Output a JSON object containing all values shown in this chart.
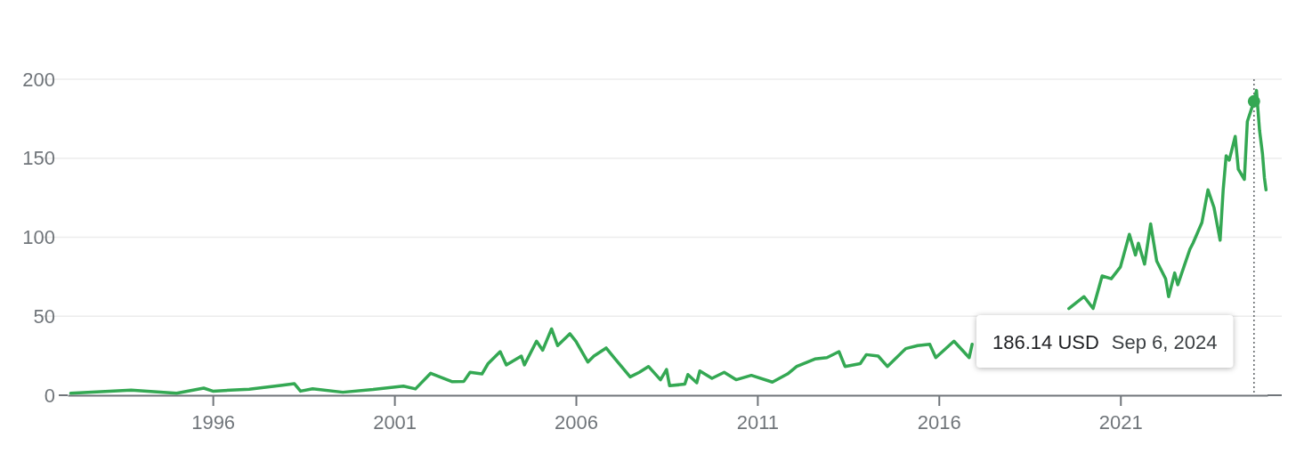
{
  "chart_data": {
    "type": "line",
    "x": [
      "1992-02",
      "1993-10",
      "1995-01",
      "1995-10",
      "1996-01",
      "1997-01",
      "1997-12",
      "1998-04",
      "1998-06",
      "1998-10",
      "1999-08",
      "2000-06",
      "2001-04",
      "2001-08",
      "2002-01",
      "2002-08",
      "2002-12",
      "2003-02",
      "2003-06",
      "2003-08",
      "2003-12",
      "2004-02",
      "2004-07",
      "2004-08",
      "2004-12",
      "2005-02",
      "2005-05",
      "2005-07",
      "2005-11",
      "2006-01",
      "2006-05",
      "2006-07",
      "2006-11",
      "2007-02",
      "2007-07",
      "2007-10",
      "2008-01",
      "2008-05",
      "2008-07",
      "2008-08",
      "2009-01",
      "2009-02",
      "2009-05",
      "2009-06",
      "2009-10",
      "2010-02",
      "2010-06",
      "2010-11",
      "2011-06",
      "2011-11",
      "2012-02",
      "2012-08",
      "2012-12",
      "2013-04",
      "2013-06",
      "2013-11",
      "2014-01",
      "2014-05",
      "2014-08",
      "2015-02",
      "2015-06",
      "2015-10",
      "2015-12",
      "2016-06",
      "2016-11",
      "2016-12",
      "2017-04",
      "2018-06",
      "2019-06",
      "2019-08",
      "2020-01",
      "2020-04",
      "2020-07",
      "2020-10",
      "2021-01",
      "2021-04",
      "2021-06",
      "2021-07",
      "2021-09",
      "2021-11",
      "2022-01",
      "2022-04",
      "2022-05",
      "2022-07",
      "2022-08",
      "2022-12",
      "2023-01",
      "2023-04",
      "2023-06",
      "2023-08",
      "2023-10",
      "2023-11",
      "2023-12",
      "2024-01",
      "2024-03",
      "2024-04",
      "2024-06",
      "2024-07",
      "2024-09-06",
      "2024-10",
      "2024-11",
      "2024-12",
      "2024-12-20",
      "2025-01-05"
    ],
    "series": [
      {
        "color": "#34a853",
        "values": [
          1.3,
          3.2,
          1.3,
          4.5,
          2.6,
          3.8,
          6.4,
          7.3,
          2.6,
          4.1,
          1.9,
          3.6,
          5.8,
          4.0,
          13.9,
          8.6,
          8.8,
          14.5,
          13.5,
          20,
          27.6,
          19.2,
          24.8,
          19.2,
          34.2,
          28.5,
          42,
          31.4,
          38.9,
          34.2,
          21,
          24.8,
          29.9,
          22.9,
          11.6,
          14.5,
          18.2,
          9.8,
          16.3,
          6,
          7,
          13.1,
          7.9,
          15.4,
          10.7,
          14.5,
          9.8,
          12.6,
          8.3,
          13.5,
          18.2,
          22.9,
          23.8,
          27.6,
          18.2,
          20,
          25.7,
          24.8,
          18.2,
          29.5,
          31.4,
          32.3,
          23.8,
          34.2,
          23.8,
          32.3,
          null,
          null,
          null,
          54.9,
          62.4,
          54.9,
          75.5,
          73.7,
          81.2,
          101.8,
          88.7,
          96.2,
          83,
          108.4,
          84.9,
          73.7,
          62.4,
          77.4,
          69.9,
          92.4,
          96.2,
          109.3,
          130,
          118.7,
          98.1,
          130,
          151.6,
          148.8,
          163.8,
          143.1,
          136.6,
          173.2,
          186,
          192.9,
          167.6,
          152.5,
          137.5,
          130
        ]
      }
    ],
    "xlim": [
      "1992-01-01",
      "2025-01-20"
    ],
    "xticks": [
      {
        "value": "1996-01-01",
        "label": "1996"
      },
      {
        "value": "2001-01-01",
        "label": "2001"
      },
      {
        "value": "2006-01-01",
        "label": "2006"
      },
      {
        "value": "2011-01-01",
        "label": "2011"
      },
      {
        "value": "2016-01-01",
        "label": "2016"
      },
      {
        "value": "2021-01-01",
        "label": "2021"
      }
    ],
    "ylim": [
      0,
      200
    ],
    "yticks": [
      0,
      50,
      100,
      150,
      200
    ],
    "grid": "y",
    "marker": "none",
    "line_style": "solid",
    "ref_lines": [
      {
        "axis": "x",
        "value": "2024-09-06",
        "line_style": "dotted",
        "color": "#5f6368"
      }
    ],
    "annotations": [
      "186.14 USD",
      "Sep 6, 2024"
    ]
  }
}
